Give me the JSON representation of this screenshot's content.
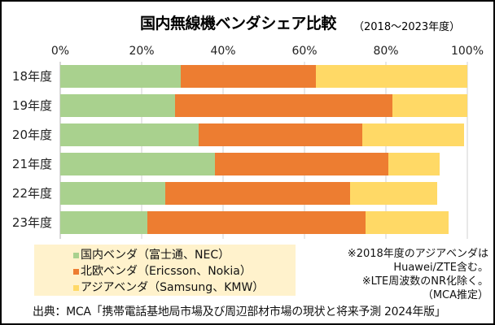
{
  "chart_data": {
    "type": "bar",
    "orientation": "horizontal",
    "stacked": true,
    "title": "国内無線機ベンダシェア比較",
    "subtitle": "（2018～2023年度）",
    "xlabel": "",
    "ylabel": "",
    "xlim": [
      0,
      100
    ],
    "x_ticks": [
      "0%",
      "20%",
      "40%",
      "60%",
      "80%",
      "100%"
    ],
    "grid": true,
    "categories": [
      "18年度",
      "19年度",
      "20年度",
      "21年度",
      "22年度",
      "23年度"
    ],
    "series": [
      {
        "name": "国内ベンダ（富士通、NEC）",
        "color": "#A9D18E",
        "values": [
          29.6,
          28.2,
          34.0,
          38.0,
          25.8,
          21.4
        ]
      },
      {
        "name": "北欧ベンダ（Ericsson、Nokia）",
        "color": "#ED7D31",
        "values": [
          33.2,
          53.4,
          40.2,
          42.6,
          45.4,
          53.6
        ]
      },
      {
        "name": "アジアベンダ（Samsung、KMW）",
        "color": "#FFD966",
        "values": [
          37.2,
          18.4,
          25.0,
          12.6,
          21.4,
          20.4
        ]
      }
    ],
    "legend_position": "bottom-left"
  },
  "notes": [
    "※2018年度のアジアベンダは",
    "Huawei/ZTE含む。",
    "※LTE周波数のNR化除く。",
    "（MCA推定）"
  ],
  "source": "出典：MCA「携帯電話基地局市場及び周辺部材市場の現状と将来予測 2024年版」",
  "legend_bg": "#FFF2CC"
}
